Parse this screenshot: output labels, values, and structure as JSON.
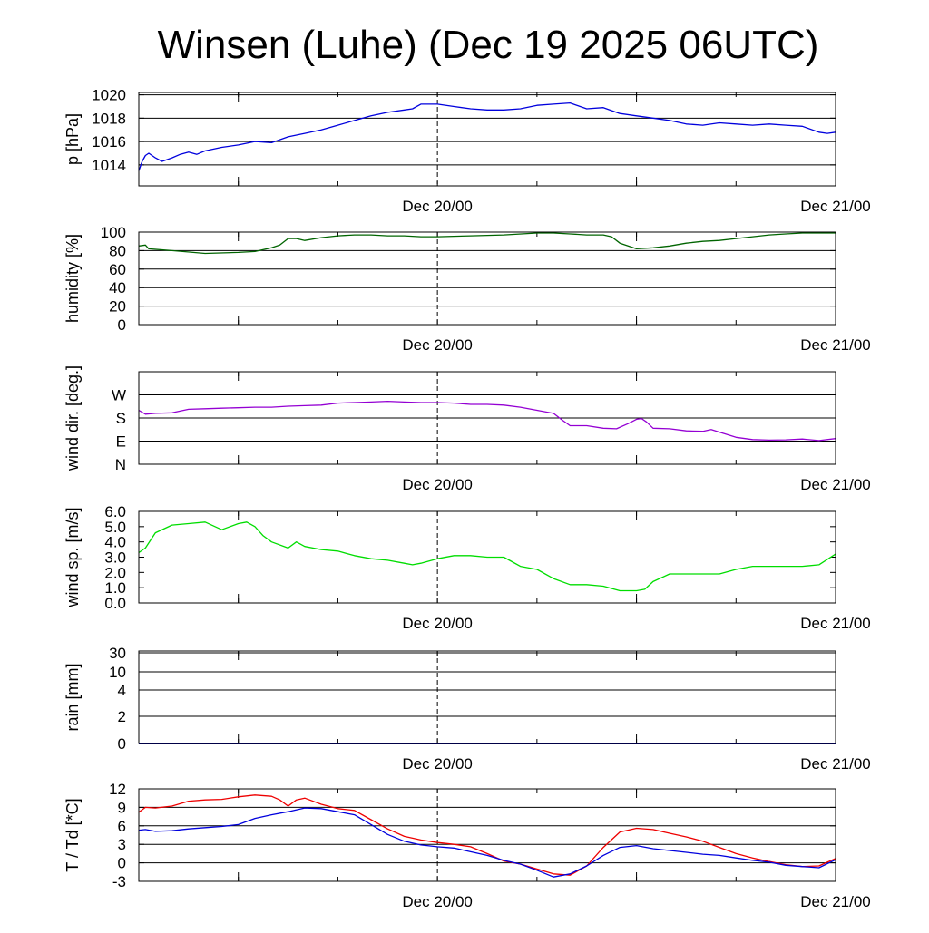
{
  "title": "Winsen (Luhe) (Dec 19 2025 06UTC)",
  "colors": {
    "pressure": "#0000dd",
    "humidity": "#006400",
    "wind_dir": "#9400d3",
    "wind_speed": "#00dd00",
    "rain": "#00008b",
    "temperature": "#ee0000",
    "dewpoint": "#0000dd"
  },
  "chart_data": [
    {
      "type": "line",
      "ylabel": "p [hPa]",
      "x_ticks": [
        "Dec 20/00",
        "Dec 21/00"
      ],
      "x_range_hours": [
        -18,
        24
      ],
      "ylim": [
        1012.2,
        1020.2
      ],
      "yticks": [
        1014,
        1016,
        1018,
        1020
      ],
      "ytick_labels": [
        "1014",
        "1016",
        "1018",
        "1020"
      ],
      "grid_lines": [
        1014,
        1016,
        1018,
        1020
      ],
      "series": [
        {
          "color_key": "pressure",
          "x_hours_rel_dec20_00": [
            -18,
            -17.8,
            -17.6,
            -17.4,
            -17,
            -16.6,
            -16,
            -15.5,
            -15,
            -14.5,
            -14,
            -13,
            -12,
            -11,
            -10,
            -9,
            -8,
            -7,
            -6,
            -5,
            -4,
            -3,
            -2,
            -1.5,
            -1,
            0,
            1,
            2,
            3,
            4,
            5,
            6,
            7,
            8,
            9,
            10,
            11,
            12,
            13,
            14,
            15,
            16,
            17,
            18,
            19,
            20,
            21,
            22,
            23,
            23.5,
            24
          ],
          "values": [
            1013.5,
            1014.3,
            1014.8,
            1015.0,
            1014.6,
            1014.3,
            1014.6,
            1014.9,
            1015.1,
            1014.9,
            1015.2,
            1015.5,
            1015.7,
            1016.0,
            1015.9,
            1016.4,
            1016.7,
            1017.0,
            1017.4,
            1017.8,
            1018.2,
            1018.5,
            1018.7,
            1018.8,
            1019.2,
            1019.2,
            1019.0,
            1018.8,
            1018.7,
            1018.7,
            1018.8,
            1019.1,
            1019.2,
            1019.3,
            1018.8,
            1018.9,
            1018.4,
            1018.2,
            1018.0,
            1017.8,
            1017.5,
            1017.4,
            1017.6,
            1017.5,
            1017.4,
            1017.5,
            1017.4,
            1017.3,
            1016.8,
            1016.7,
            1016.8
          ]
        }
      ]
    },
    {
      "type": "line",
      "ylabel": "humidity [%]",
      "x_ticks": [
        "Dec 20/00",
        "Dec 21/00"
      ],
      "x_range_hours": [
        -18,
        24
      ],
      "ylim": [
        0,
        100
      ],
      "yticks": [
        0,
        20,
        40,
        60,
        80,
        100
      ],
      "ytick_labels": [
        "0",
        "20",
        "40",
        "60",
        "80",
        "100"
      ],
      "grid_lines": [
        20,
        40,
        60,
        80,
        100
      ],
      "series": [
        {
          "color_key": "humidity",
          "x_hours_rel_dec20_00": [
            -18,
            -17.6,
            -17.4,
            -16,
            -14,
            -12,
            -11,
            -10,
            -9.5,
            -9,
            -8.5,
            -8,
            -7,
            -6,
            -5,
            -4,
            -3,
            -2,
            -1,
            0,
            2,
            4,
            6,
            7,
            8,
            9,
            10,
            10.5,
            11,
            12,
            13,
            14,
            15,
            16,
            17,
            18,
            19,
            20,
            21,
            22,
            23,
            24
          ],
          "values": [
            85,
            86,
            82,
            80,
            77,
            78,
            79,
            83,
            86,
            93,
            93,
            91,
            94,
            96,
            97,
            97,
            96,
            96,
            95,
            95,
            96,
            97,
            99,
            99,
            98,
            97,
            97,
            95,
            88,
            82,
            83,
            85,
            88,
            90,
            91,
            93,
            95,
            97,
            98,
            99,
            99,
            99
          ]
        }
      ]
    },
    {
      "type": "line",
      "ylabel": "wind dir. [deg.]",
      "x_ticks": [
        "Dec 20/00",
        "Dec 21/00"
      ],
      "x_range_hours": [
        -18,
        24
      ],
      "ylim": [
        0,
        360
      ],
      "yticks": [
        0,
        90,
        180,
        270
      ],
      "ytick_labels": [
        "N",
        "E",
        "S",
        "W"
      ],
      "grid_lines": [
        90,
        180,
        270
      ],
      "series": [
        {
          "color_key": "wind_dir",
          "x_hours_rel_dec20_00": [
            -18,
            -17.6,
            -17,
            -16,
            -15,
            -14,
            -13,
            -12,
            -11,
            -10,
            -9,
            -8,
            -7,
            -6,
            -5,
            -4,
            -3,
            -2,
            -1,
            0,
            1,
            2,
            3,
            4,
            5,
            6,
            7,
            7.5,
            8,
            9,
            10,
            10.8,
            11.5,
            12,
            12.3,
            12.6,
            13,
            14,
            15,
            16,
            16.5,
            17,
            18,
            19,
            20,
            21,
            22,
            23,
            24
          ],
          "values": [
            210,
            195,
            198,
            200,
            214,
            216,
            218,
            220,
            222,
            222,
            226,
            228,
            230,
            238,
            240,
            242,
            245,
            242,
            240,
            240,
            238,
            233,
            233,
            230,
            222,
            210,
            198,
            173,
            150,
            150,
            140,
            138,
            158,
            175,
            178,
            165,
            140,
            138,
            130,
            128,
            135,
            125,
            105,
            96,
            94,
            95,
            98,
            92,
            100
          ]
        }
      ]
    },
    {
      "type": "line",
      "ylabel": "wind sp. [m/s]",
      "x_ticks": [
        "Dec 20/00",
        "Dec 21/00"
      ],
      "x_range_hours": [
        -18,
        24
      ],
      "ylim": [
        0,
        6
      ],
      "yticks": [
        0,
        1,
        2,
        3,
        4,
        5,
        6
      ],
      "ytick_labels": [
        "0.0",
        "1.0",
        "2.0",
        "3.0",
        "4.0",
        "5.0",
        "6.0"
      ],
      "grid_lines": [],
      "series": [
        {
          "color_key": "wind_speed",
          "x_hours_rel_dec20_00": [
            -18,
            -17.6,
            -17,
            -16,
            -15,
            -14,
            -13,
            -12,
            -11.5,
            -11,
            -10.5,
            -10,
            -9,
            -8.5,
            -8,
            -7,
            -6,
            -5,
            -4,
            -3,
            -2,
            -1.5,
            -1,
            0,
            1,
            2,
            3,
            4,
            4.5,
            5,
            6,
            7,
            8,
            9,
            10,
            11,
            12,
            12.5,
            13,
            14,
            15,
            16,
            17,
            18,
            19,
            20,
            21,
            22,
            23,
            24
          ],
          "values": [
            3.3,
            3.6,
            4.6,
            5.1,
            5.2,
            5.3,
            4.8,
            5.2,
            5.3,
            5.0,
            4.4,
            4.0,
            3.6,
            4.0,
            3.7,
            3.5,
            3.4,
            3.1,
            2.9,
            2.8,
            2.6,
            2.5,
            2.6,
            2.9,
            3.1,
            3.1,
            3.0,
            3.0,
            2.7,
            2.4,
            2.2,
            1.6,
            1.2,
            1.2,
            1.1,
            0.8,
            0.8,
            0.9,
            1.4,
            1.9,
            1.9,
            1.9,
            1.9,
            2.2,
            2.4,
            2.4,
            2.4,
            2.4,
            2.5,
            3.2
          ]
        }
      ]
    },
    {
      "type": "line",
      "ylabel": "rain [mm]",
      "x_ticks": [
        "Dec 20/00",
        "Dec 21/00"
      ],
      "x_range_hours": [
        -18,
        24
      ],
      "yticks": [
        0,
        2,
        4,
        10,
        30
      ],
      "ytick_labels": [
        "0",
        "2",
        "4",
        "10",
        "30"
      ],
      "grid_lines": [
        2,
        4,
        10,
        30
      ],
      "scale": "nonlinear",
      "series": [
        {
          "color_key": "rain",
          "x_hours_rel_dec20_00": [
            -18,
            24
          ],
          "values": [
            0,
            0
          ]
        }
      ]
    },
    {
      "type": "line",
      "ylabel": "T / Td [*C]",
      "x_ticks": [
        "Dec 20/00",
        "Dec 21/00"
      ],
      "x_range_hours": [
        -18,
        24
      ],
      "ylim": [
        -3,
        12
      ],
      "yticks": [
        -3,
        0,
        3,
        6,
        9,
        12
      ],
      "ytick_labels": [
        "-3",
        "0",
        "3",
        "6",
        "9",
        "12"
      ],
      "grid_lines": [
        0,
        3,
        6,
        9
      ],
      "series": [
        {
          "color_key": "temperature",
          "x_hours_rel_dec20_00": [
            -18,
            -17.6,
            -17,
            -16,
            -15,
            -14,
            -13,
            -12,
            -11,
            -10,
            -9.5,
            -9,
            -8.5,
            -8,
            -7,
            -6,
            -5,
            -4,
            -3,
            -2,
            -1,
            0,
            1,
            2,
            3,
            4,
            5,
            6,
            7,
            8,
            9,
            10,
            11,
            12,
            13,
            14,
            15,
            16,
            17,
            18,
            19,
            20,
            21,
            22,
            23,
            24
          ],
          "values": [
            8.2,
            9.0,
            8.9,
            9.2,
            10.0,
            10.2,
            10.3,
            10.7,
            11.0,
            10.8,
            10.2,
            9.2,
            10.2,
            10.5,
            9.5,
            8.8,
            8.5,
            7.0,
            5.5,
            4.3,
            3.7,
            3.3,
            3.0,
            2.6,
            1.5,
            0.3,
            -0.2,
            -1.0,
            -1.8,
            -2.0,
            -0.5,
            2.5,
            5.0,
            5.6,
            5.4,
            4.8,
            4.2,
            3.5,
            2.5,
            1.5,
            0.8,
            0.2,
            -0.3,
            -0.6,
            -0.5,
            0.7
          ]
        },
        {
          "color_key": "dewpoint",
          "x_hours_rel_dec20_00": [
            -18,
            -17.6,
            -17,
            -16,
            -15,
            -14,
            -13,
            -12,
            -11,
            -10,
            -9,
            -8,
            -7,
            -6,
            -5,
            -4,
            -3,
            -2,
            -1,
            0,
            1,
            2,
            3,
            4,
            5,
            6,
            7,
            8,
            9,
            10,
            11,
            12,
            13,
            14,
            15,
            16,
            17,
            18,
            19,
            20,
            21,
            22,
            23,
            24
          ],
          "values": [
            5.3,
            5.4,
            5.1,
            5.2,
            5.5,
            5.7,
            5.9,
            6.2,
            7.2,
            7.8,
            8.3,
            8.9,
            8.8,
            8.3,
            7.8,
            6.2,
            4.6,
            3.5,
            2.9,
            2.6,
            2.4,
            1.8,
            1.2,
            0.4,
            -0.2,
            -1.2,
            -2.3,
            -1.8,
            -0.5,
            1.2,
            2.5,
            2.8,
            2.3,
            2.0,
            1.7,
            1.4,
            1.2,
            0.8,
            0.4,
            0.1,
            -0.4,
            -0.6,
            -0.8,
            0.5
          ]
        }
      ]
    }
  ]
}
